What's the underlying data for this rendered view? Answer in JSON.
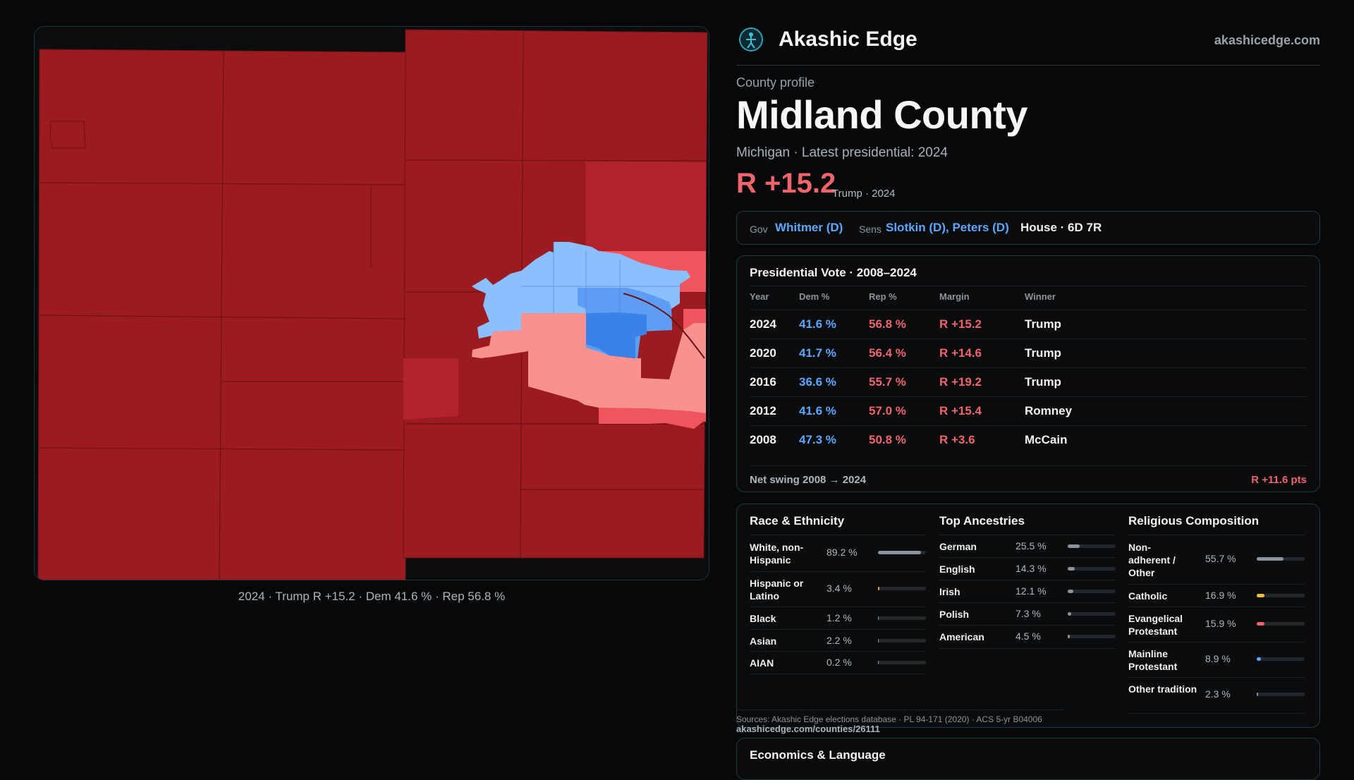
{
  "brand": {
    "name": "Akashic Edge",
    "url": "akashicedge.com",
    "icon": "globe-person-icon"
  },
  "county": {
    "eyebrow": "County profile",
    "name": "Midland County",
    "subline": "Michigan · Latest presidential: 2024",
    "margin": "R +15.2",
    "margin_note": "Trump · 2024"
  },
  "officials": {
    "gov_label": "Gov",
    "gov": "Whitmer (D)",
    "sens_label": "Sens",
    "sens": "Slotkin (D), Peters (D)",
    "house": "House · 6D 7R"
  },
  "presidential": {
    "title": "Presidential Vote · 2008–2024",
    "headers": [
      "Year",
      "Dem %",
      "Rep %",
      "Margin",
      "Winner"
    ],
    "rows": [
      [
        "2024",
        "41.6 %",
        "56.8 %",
        "R +15.2",
        "Trump"
      ],
      [
        "2020",
        "41.7 %",
        "56.4 %",
        "R +14.6",
        "Trump"
      ],
      [
        "2016",
        "36.6 %",
        "55.7 %",
        "R +19.2",
        "Trump"
      ],
      [
        "2012",
        "41.6 %",
        "57.0 %",
        "R +15.4",
        "Romney"
      ],
      [
        "2008",
        "47.3 %",
        "50.8 %",
        "R +3.6",
        "McCain"
      ]
    ],
    "swing_label": "Net swing 2008 → 2024",
    "swing_value": "R +11.6 pts"
  },
  "race": {
    "title": "Race & Ethnicity",
    "items": [
      {
        "label": "White, non-Hispanic",
        "value": "89.2 %",
        "pct": 89.2
      },
      {
        "label": "Hispanic or Latino",
        "value": "3.4 %",
        "pct": 3.4
      },
      {
        "label": "Black",
        "value": "1.2 %",
        "pct": 1.2
      },
      {
        "label": "Asian",
        "value": "2.2 %",
        "pct": 2.2
      },
      {
        "label": "AIAN",
        "value": "0.2 %",
        "pct": 0.2
      }
    ]
  },
  "ancestry": {
    "title": "Top Ancestries",
    "items": [
      {
        "label": "German",
        "value": "25.5 %",
        "pct": 25.5
      },
      {
        "label": "English",
        "value": "14.3 %",
        "pct": 14.3
      },
      {
        "label": "Irish",
        "value": "12.1 %",
        "pct": 12.1
      },
      {
        "label": "Polish",
        "value": "7.3 %",
        "pct": 7.3
      },
      {
        "label": "American",
        "value": "4.5 %",
        "pct": 4.5
      }
    ]
  },
  "religion": {
    "title": "Religious Composition",
    "items": [
      {
        "label": "Non-adherent / Other",
        "value": "55.7 %",
        "pct": 55.7
      },
      {
        "label": "Catholic",
        "value": "16.9 %",
        "pct": 16.9
      },
      {
        "label": "Evangelical Protestant",
        "value": "15.9 %",
        "pct": 15.9
      },
      {
        "label": "Mainline Protestant",
        "value": "8.9 %",
        "pct": 8.9
      },
      {
        "label": "Other tradition",
        "value": "2.3 %",
        "pct": 2.3
      }
    ]
  },
  "sources": "Sources: Akashic Edge elections database · PL 94-171 (2020) · ACS 5-yr B04006",
  "sources_url": "akashicedge.com/counties/26111",
  "econ_title": "Economics & Language",
  "map_caption": "2024 · Trump R +15.2 · Dem 41.6 % · Rep 56.8 %",
  "colors": {
    "rep_strong": "#9b1b20",
    "rep_mid": "#b3232b",
    "rep_light": "#f0555d",
    "rep_pale": "#f79290",
    "dem_light": "#8cbfff",
    "dem_mid": "#5d9ef4",
    "dem_strong": "#3a82ea",
    "accent_border": "#1c3b43"
  }
}
